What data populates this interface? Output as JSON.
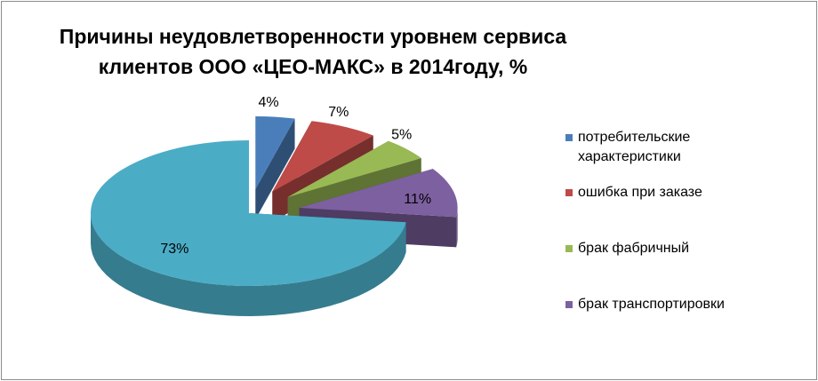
{
  "chart_data": {
    "type": "pie",
    "title_lines": [
      "Причины неудовлетворенности уровнем сервиса",
      "клиентов ООО «ЦЕО-МАКС» в 2014году, %"
    ],
    "slices": [
      {
        "name": "потребительские характеристики",
        "name_lines": [
          "потребительские",
          "характеристики"
        ],
        "value": 4,
        "label": "4%",
        "color": "#4a7ebb",
        "exploded": true
      },
      {
        "name": "ошибка при заказе",
        "name_lines": [
          "ошибка при заказе"
        ],
        "value": 7,
        "label": "7%",
        "color": "#be4b48",
        "exploded": true
      },
      {
        "name": "брак фабричный",
        "name_lines": [
          "брак фабричный"
        ],
        "value": 5,
        "label": "5%",
        "color": "#98b954",
        "exploded": true
      },
      {
        "name": "брак транспортировки",
        "name_lines": [
          "брак транспортировки"
        ],
        "value": 11,
        "label": "11%",
        "color": "#7d60a0",
        "exploded": true
      },
      {
        "name": "",
        "name_lines": [],
        "value": 73,
        "label": "73%",
        "color": "#4bacc6",
        "exploded": false
      }
    ],
    "legend_position": "right",
    "style": "3d-exploded-pie"
  }
}
